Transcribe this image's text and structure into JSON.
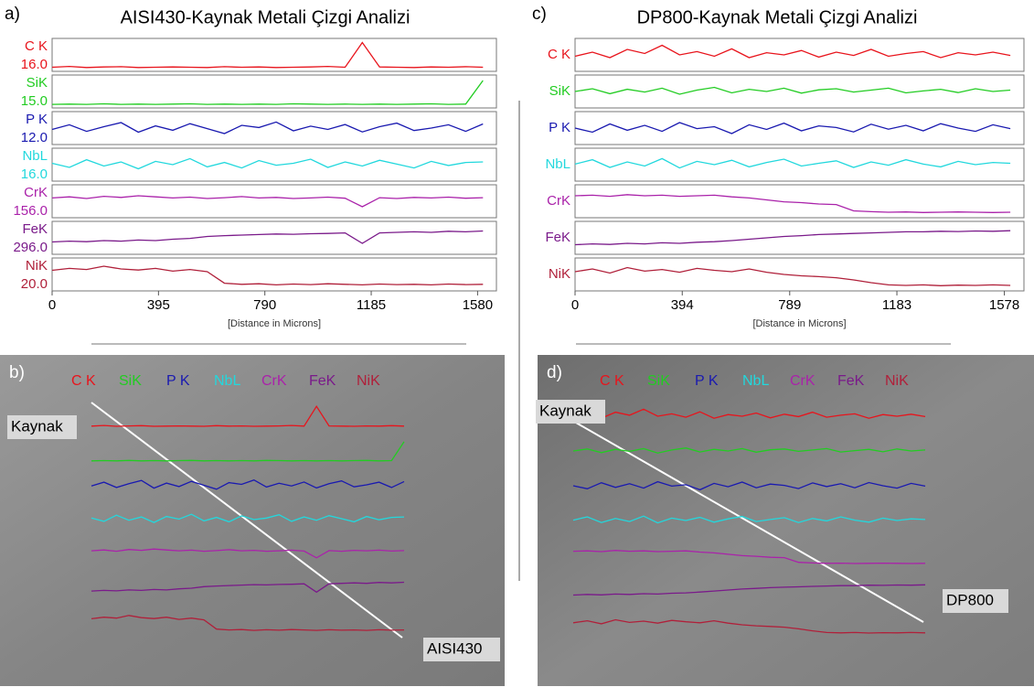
{
  "chart_data": [
    {
      "type": "line",
      "panel_label": "a)",
      "title": "AISI430-Kaynak Metali Çizgi Analizi",
      "x": [
        0,
        64,
        128,
        192,
        256,
        320,
        384,
        448,
        512,
        576,
        640,
        704,
        768,
        832,
        896,
        960,
        1024,
        1088,
        1152,
        1216,
        1280,
        1344,
        1408,
        1472,
        1536,
        1600
      ],
      "xlim": [
        0,
        1650
      ],
      "xticks": [
        0,
        395,
        790,
        1185,
        1580
      ],
      "x_label": "[Distance in Microns]",
      "ylim": [
        0,
        100
      ],
      "series": [
        {
          "name": "C K",
          "color": "#e8141c",
          "scale": {
            "value": 16,
            "label": "16.0"
          },
          "values": [
            5,
            8,
            4,
            6,
            7,
            4,
            5,
            6,
            5,
            4,
            7,
            5,
            6,
            4,
            5,
            6,
            8,
            5,
            95,
            6,
            5,
            4,
            6,
            5,
            7,
            5
          ]
        },
        {
          "name": "SiK",
          "color": "#22cc22",
          "scale": {
            "value": 15,
            "label": "15.0"
          },
          "values": [
            3,
            4,
            3,
            5,
            3,
            4,
            3,
            4,
            5,
            3,
            4,
            3,
            4,
            3,
            5,
            4,
            3,
            4,
            3,
            4,
            3,
            4,
            5,
            3,
            4,
            90
          ]
        },
        {
          "name": "P K",
          "color": "#1a1ab0",
          "scale": {
            "value": 12,
            "label": "12.0"
          },
          "values": [
            45,
            62,
            38,
            55,
            70,
            35,
            58,
            42,
            66,
            48,
            30,
            60,
            52,
            72,
            40,
            57,
            45,
            63,
            36,
            55,
            68,
            41,
            50,
            62,
            38,
            65
          ]
        },
        {
          "name": "NbL",
          "color": "#22d8dd",
          "scale": {
            "value": 16,
            "label": "16.0"
          },
          "values": [
            55,
            40,
            68,
            45,
            60,
            35,
            62,
            50,
            72,
            42,
            58,
            38,
            65,
            48,
            55,
            70,
            40,
            60,
            45,
            66,
            52,
            38,
            62,
            47,
            58,
            60
          ]
        },
        {
          "name": "CrK",
          "color": "#aa22aa",
          "scale": {
            "value": 156,
            "label": "156.0"
          },
          "values": [
            62,
            66,
            60,
            68,
            64,
            70,
            66,
            62,
            65,
            60,
            63,
            67,
            62,
            64,
            60,
            62,
            65,
            61,
            30,
            63,
            60,
            64,
            62,
            65,
            61,
            63
          ]
        },
        {
          "name": "FeK",
          "color": "#7a1a8a",
          "scale": {
            "value": 296,
            "label": "296.0"
          },
          "values": [
            35,
            38,
            36,
            40,
            38,
            42,
            40,
            45,
            48,
            55,
            58,
            60,
            62,
            64,
            63,
            65,
            66,
            68,
            30,
            68,
            70,
            72,
            70,
            74,
            72,
            75
          ]
        },
        {
          "name": "NiK",
          "color": "#b0203a",
          "scale": {
            "value": 20,
            "label": "20.0"
          },
          "values": [
            65,
            72,
            68,
            80,
            70,
            66,
            72,
            62,
            68,
            60,
            18,
            14,
            16,
            12,
            15,
            13,
            16,
            14,
            12,
            15,
            13,
            14,
            12,
            15,
            13,
            14
          ]
        }
      ]
    },
    {
      "type": "line",
      "panel_label": "c)",
      "title": "DP800-Kaynak Metali Çizgi Analizi",
      "x": [
        0,
        64,
        128,
        192,
        256,
        320,
        384,
        448,
        512,
        576,
        640,
        704,
        768,
        832,
        896,
        960,
        1024,
        1088,
        1152,
        1216,
        1280,
        1344,
        1408,
        1472,
        1536,
        1600
      ],
      "xlim": [
        0,
        1650
      ],
      "xticks": [
        0,
        394,
        789,
        1183,
        1578
      ],
      "x_label": "[Distance in Microns]",
      "ylim": [
        0,
        100
      ],
      "series": [
        {
          "name": "C K",
          "color": "#e8141c",
          "values": [
            45,
            60,
            40,
            70,
            55,
            85,
            50,
            62,
            45,
            72,
            40,
            58,
            50,
            66,
            42,
            60,
            48,
            70,
            45,
            55,
            62,
            40,
            58,
            50,
            60,
            48
          ]
        },
        {
          "name": "SiK",
          "color": "#22cc22",
          "values": [
            50,
            60,
            42,
            58,
            48,
            62,
            40,
            55,
            65,
            45,
            58,
            50,
            62,
            44,
            56,
            60,
            48,
            55,
            62,
            45,
            52,
            58,
            46,
            60,
            50,
            55
          ]
        },
        {
          "name": "P K",
          "color": "#1a1ab0",
          "values": [
            50,
            35,
            65,
            42,
            60,
            38,
            70,
            48,
            55,
            30,
            62,
            45,
            68,
            40,
            58,
            52,
            36,
            64,
            46,
            60,
            40,
            66,
            50,
            38,
            62,
            48
          ]
        },
        {
          "name": "NbL",
          "color": "#22d8dd",
          "values": [
            52,
            68,
            40,
            60,
            45,
            72,
            38,
            62,
            50,
            66,
            42,
            58,
            70,
            45,
            55,
            64,
            40,
            60,
            48,
            68,
            52,
            42,
            62,
            50,
            58,
            55
          ]
        },
        {
          "name": "CrK",
          "color": "#aa22aa",
          "values": [
            70,
            72,
            68,
            74,
            70,
            72,
            68,
            70,
            72,
            66,
            62,
            55,
            48,
            45,
            40,
            38,
            15,
            12,
            10,
            11,
            9,
            10,
            11,
            10,
            9,
            10
          ]
        },
        {
          "name": "FeK",
          "color": "#7a1a8a",
          "values": [
            25,
            28,
            26,
            30,
            28,
            32,
            30,
            34,
            36,
            40,
            45,
            50,
            55,
            58,
            62,
            64,
            66,
            68,
            70,
            72,
            72,
            74,
            73,
            75,
            74,
            76
          ]
        },
        {
          "name": "NiK",
          "color": "#b0203a",
          "values": [
            60,
            70,
            55,
            75,
            62,
            68,
            58,
            72,
            65,
            60,
            70,
            58,
            50,
            45,
            42,
            38,
            30,
            20,
            12,
            10,
            12,
            9,
            11,
            10,
            12,
            10
          ]
        }
      ]
    }
  ],
  "micrographs": [
    {
      "panel_label": "b)",
      "region_left": "Kaynak",
      "region_right": "AISI430"
    },
    {
      "panel_label": "d)",
      "region_left": "Kaynak",
      "region_right": "DP800"
    }
  ]
}
